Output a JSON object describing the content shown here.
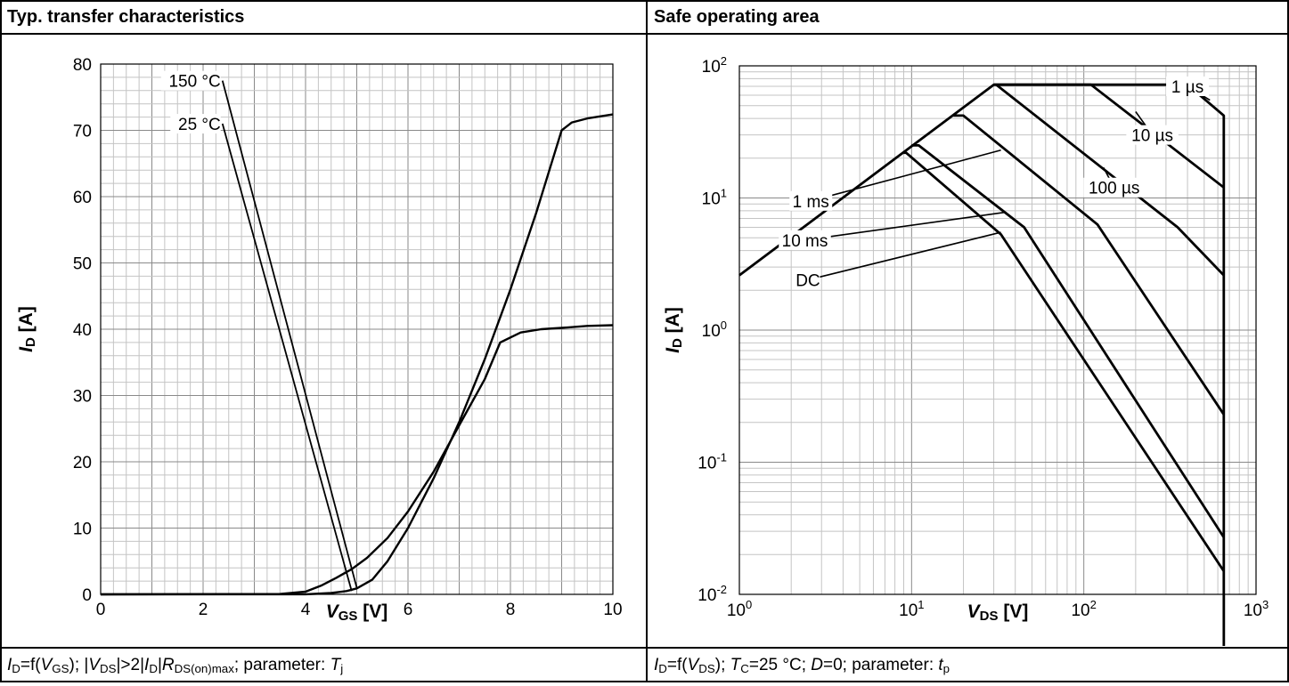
{
  "left": {
    "title": "Typ. transfer characteristics",
    "caption": {
      "p1": "I",
      "p1s": "D",
      "p2": "=f(",
      "p3": "V",
      "p3s": "GS",
      "p4": "); |",
      "p5": "V",
      "p5s": "DS",
      "p6": "|>2|",
      "p7": "I",
      "p7s": "D",
      "p8": "|",
      "p9": "R",
      "p9s": "DS(on)max",
      "p10": "; parameter: ",
      "p11": "T",
      "p11s": "j"
    }
  },
  "right": {
    "title": "Safe operating area",
    "caption": {
      "p1": "I",
      "p1s": "D",
      "p2": "=f(",
      "p3": "V",
      "p3s": "DS",
      "p4": "); ",
      "p5": "T",
      "p5s": "C",
      "p6": "=25 °C; ",
      "p7": "D",
      "p8": "=0; parameter: ",
      "p9": "t",
      "p9s": "p"
    }
  },
  "chart_data": [
    {
      "type": "line",
      "title": "Typ. transfer characteristics",
      "xlabel": "VGS [V]",
      "xlabel_main": "V",
      "xlabel_sub": "GS",
      "xlabel_unit": " [V]",
      "ylabel": "ID [A]",
      "ylabel_main": "I",
      "ylabel_sub": "D",
      "ylabel_unit": " [A]",
      "xlim": [
        0,
        10
      ],
      "ylim": [
        0,
        80
      ],
      "xticks": [
        0,
        2,
        4,
        6,
        8,
        10
      ],
      "yticks": [
        0,
        10,
        20,
        30,
        40,
        50,
        60,
        70,
        80
      ],
      "grid": true,
      "series": [
        {
          "name": "150 °C",
          "x": [
            0,
            3.5,
            4.0,
            4.3,
            4.6,
            4.9,
            5.2,
            5.6,
            6.0,
            6.5,
            7.0,
            7.5,
            7.8,
            8.2,
            8.6,
            9.0,
            9.5,
            10.0
          ],
          "y": [
            0,
            0.05,
            0.4,
            1.3,
            2.5,
            3.8,
            5.5,
            8.5,
            12.5,
            18.5,
            25.5,
            32.5,
            38.0,
            39.5,
            40.0,
            40.2,
            40.5,
            40.6
          ]
        },
        {
          "name": "25 °C",
          "x": [
            0,
            4.0,
            4.5,
            4.8,
            5.0,
            5.3,
            5.6,
            6.0,
            6.5,
            7.0,
            7.5,
            8.0,
            8.5,
            8.8,
            9.0,
            9.2,
            9.5,
            10.0
          ],
          "y": [
            0,
            0.02,
            0.2,
            0.5,
            0.9,
            2.2,
            5.0,
            10.0,
            17.5,
            26.0,
            35.5,
            46.0,
            57.5,
            65.0,
            70.0,
            71.2,
            71.8,
            72.4
          ]
        }
      ],
      "annotations": [
        {
          "text": "150 °C",
          "x": 1.3,
          "y": 77.5,
          "to_x": 5.0,
          "to_y": 1.0
        },
        {
          "text": "25 °C",
          "x": 1.3,
          "y": 71.0,
          "to_x": 4.9,
          "to_y": 0.5
        }
      ]
    },
    {
      "type": "line",
      "title": "Safe operating area",
      "xlabel": "VDS [V]",
      "xlabel_main": "V",
      "xlabel_sub": "DS",
      "xlabel_unit": " [V]",
      "ylabel": "ID [A]",
      "ylabel_main": "I",
      "ylabel_sub": "D",
      "ylabel_unit": " [A]",
      "xscale": "log",
      "yscale": "log",
      "xlim": [
        1,
        1000
      ],
      "ylim": [
        0.01,
        100
      ],
      "xticks": [
        {
          "base": "10",
          "exp": "0"
        },
        {
          "base": "10",
          "exp": "1"
        },
        {
          "base": "10",
          "exp": "2"
        },
        {
          "base": "10",
          "exp": "3"
        }
      ],
      "yticks": [
        {
          "base": "10",
          "exp": "-2"
        },
        {
          "base": "10",
          "exp": "-1"
        },
        {
          "base": "10",
          "exp": "0"
        },
        {
          "base": "10",
          "exp": "1"
        },
        {
          "base": "10",
          "exp": "2"
        }
      ],
      "grid": true,
      "series": [
        {
          "name": "1 µs",
          "x": [
            1,
            30,
            400,
            650,
            650
          ],
          "y": [
            2.6,
            72,
            72,
            42,
            0.01
          ]
        },
        {
          "name": "10 µs",
          "x": [
            30,
            110,
            650
          ],
          "y": [
            72,
            72,
            12
          ]
        },
        {
          "name": "100 µs",
          "x": [
            31,
            350,
            650
          ],
          "y": [
            72,
            6,
            2.6
          ]
        },
        {
          "name": "1 ms",
          "x": [
            17.5,
            20,
            120,
            650
          ],
          "y": [
            42,
            42,
            6.3,
            0.23
          ]
        },
        {
          "name": "10 ms",
          "x": [
            10,
            11,
            45,
            650
          ],
          "y": [
            25,
            25,
            6,
            0.027
          ]
        },
        {
          "name": "DC",
          "x": [
            9,
            9.3,
            33,
            650
          ],
          "y": [
            22,
            22,
            5.3,
            0.015
          ]
        }
      ],
      "annotations": [
        {
          "text": "1 µs",
          "x": 400,
          "y": 70,
          "to_x": 540,
          "to_y": 55
        },
        {
          "text": "10 µs",
          "x": 250,
          "y": 30,
          "to_x": 200,
          "to_y": 45
        },
        {
          "text": "100 µs",
          "x": 150,
          "y": 12,
          "to_x": 130,
          "to_y": 17
        },
        {
          "text": "1 ms",
          "x": 2.6,
          "y": 9.5,
          "to_x": 33,
          "to_y": 23
        },
        {
          "text": "10 ms",
          "x": 2.4,
          "y": 4.8,
          "to_x": 35,
          "to_y": 7.8
        },
        {
          "text": "DC",
          "x": 2.5,
          "y": 2.4,
          "to_x": 33,
          "to_y": 5.5
        }
      ]
    }
  ]
}
